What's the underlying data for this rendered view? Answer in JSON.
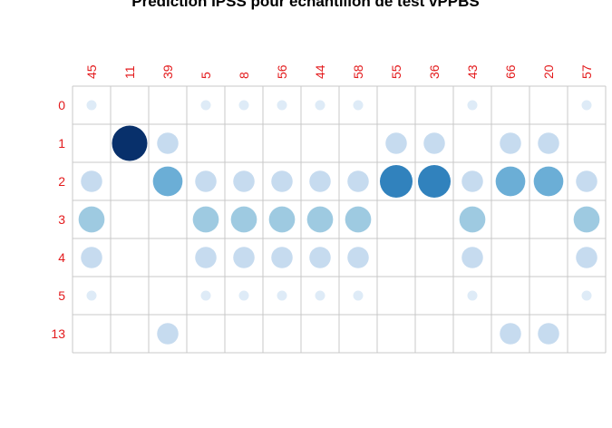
{
  "chart_data": {
    "type": "bubble-matrix",
    "title": "Prédiction IPSS pour échantillon de test vPPBS",
    "xlabel": "",
    "ylabel": "",
    "columns": [
      "45",
      "11",
      "39",
      "5",
      "8",
      "56",
      "44",
      "58",
      "55",
      "36",
      "43",
      "66",
      "20",
      "57"
    ],
    "rows": [
      "0",
      "1",
      "2",
      "3",
      "4",
      "5",
      "13"
    ],
    "label_color": "#e31a1c",
    "grid_color": "#c8c8c8",
    "color_scale": [
      "#deebf7",
      "#c6dbef",
      "#9ecae1",
      "#6baed6",
      "#3182bd",
      "#08306b"
    ],
    "values": [
      [
        1,
        0,
        0,
        1,
        1,
        1,
        1,
        1,
        0,
        0,
        1,
        0,
        0,
        1
      ],
      [
        0,
        6,
        2,
        0,
        0,
        0,
        0,
        0,
        2,
        2,
        0,
        2,
        2,
        0
      ],
      [
        2,
        0,
        4,
        2,
        2,
        2,
        2,
        2,
        5,
        5,
        2,
        4,
        4,
        2
      ],
      [
        3,
        0,
        0,
        3,
        3,
        3,
        3,
        3,
        0,
        0,
        3,
        0,
        0,
        3
      ],
      [
        2,
        0,
        0,
        2,
        2,
        2,
        2,
        2,
        0,
        0,
        2,
        0,
        0,
        2
      ],
      [
        1,
        0,
        0,
        1,
        1,
        1,
        1,
        1,
        0,
        0,
        1,
        0,
        0,
        1
      ],
      [
        0,
        0,
        2,
        0,
        0,
        0,
        0,
        0,
        0,
        0,
        0,
        2,
        2,
        0
      ]
    ],
    "grid": true
  }
}
